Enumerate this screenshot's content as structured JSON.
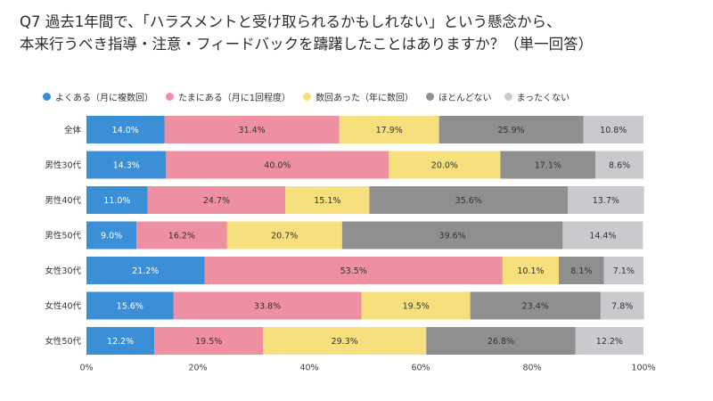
{
  "title": {
    "line1": "Q7 過去1年間で、「ハラスメントと受け取られるかもしれない」という懸念から、",
    "line2": "本来行うべき指導・注意・フィードバックを躊躇したことはありますか？（単一回答）"
  },
  "colors": {
    "series": [
      "#3b8fd6",
      "#ef8fa2",
      "#f7df7e",
      "#8f8f8f",
      "#c8cace"
    ]
  },
  "chart_data": {
    "type": "bar",
    "orientation": "horizontal",
    "stacked": true,
    "categories": [
      "全体",
      "男性30代",
      "男性40代",
      "男性50代",
      "女性30代",
      "女性40代",
      "女性50代"
    ],
    "series": [
      {
        "name": "よくある（月に複数回）",
        "values": [
          14.0,
          14.3,
          11.0,
          9.0,
          21.2,
          15.6,
          12.2
        ]
      },
      {
        "name": "たまにある（月に1回程度）",
        "values": [
          31.4,
          40.0,
          24.7,
          16.2,
          53.5,
          33.8,
          19.5
        ]
      },
      {
        "name": "数回あった（年に数回）",
        "values": [
          17.9,
          20.0,
          15.1,
          20.7,
          10.1,
          19.5,
          29.3
        ]
      },
      {
        "name": "ほとんどない",
        "values": [
          25.9,
          17.1,
          35.6,
          39.6,
          8.1,
          23.4,
          26.8
        ]
      },
      {
        "name": "まったくない",
        "values": [
          10.8,
          8.6,
          13.7,
          14.4,
          7.1,
          7.8,
          12.2
        ]
      }
    ],
    "data_labels": [
      [
        "14.0%",
        "14.3%",
        "11.0%",
        "9.0%",
        "21.2%",
        "15.6%",
        "12.2%"
      ],
      [
        "31.4%",
        "40.0%",
        "24.7%",
        "16.2%",
        "53.5%",
        "33.8%",
        "19.5%"
      ],
      [
        "17.9%",
        "20.0%",
        "15.1%",
        "20.7%",
        "10.1%",
        "19.5%",
        "29.3%"
      ],
      [
        "25.9%",
        "17.1%",
        "35.6%",
        "39.6%",
        "8.1%",
        "23.4%",
        "26.8%"
      ],
      [
        "10.8%",
        "8.6%",
        "13.7%",
        "14.4%",
        "7.1%",
        "7.8%",
        "12.2%"
      ]
    ],
    "xlim": [
      0,
      100
    ],
    "xticks": [
      "0%",
      "20%",
      "40%",
      "60%",
      "80%",
      "100%"
    ],
    "xtick_values": [
      0,
      20,
      40,
      60,
      80,
      100
    ],
    "legend_position": "top",
    "grid": false
  }
}
